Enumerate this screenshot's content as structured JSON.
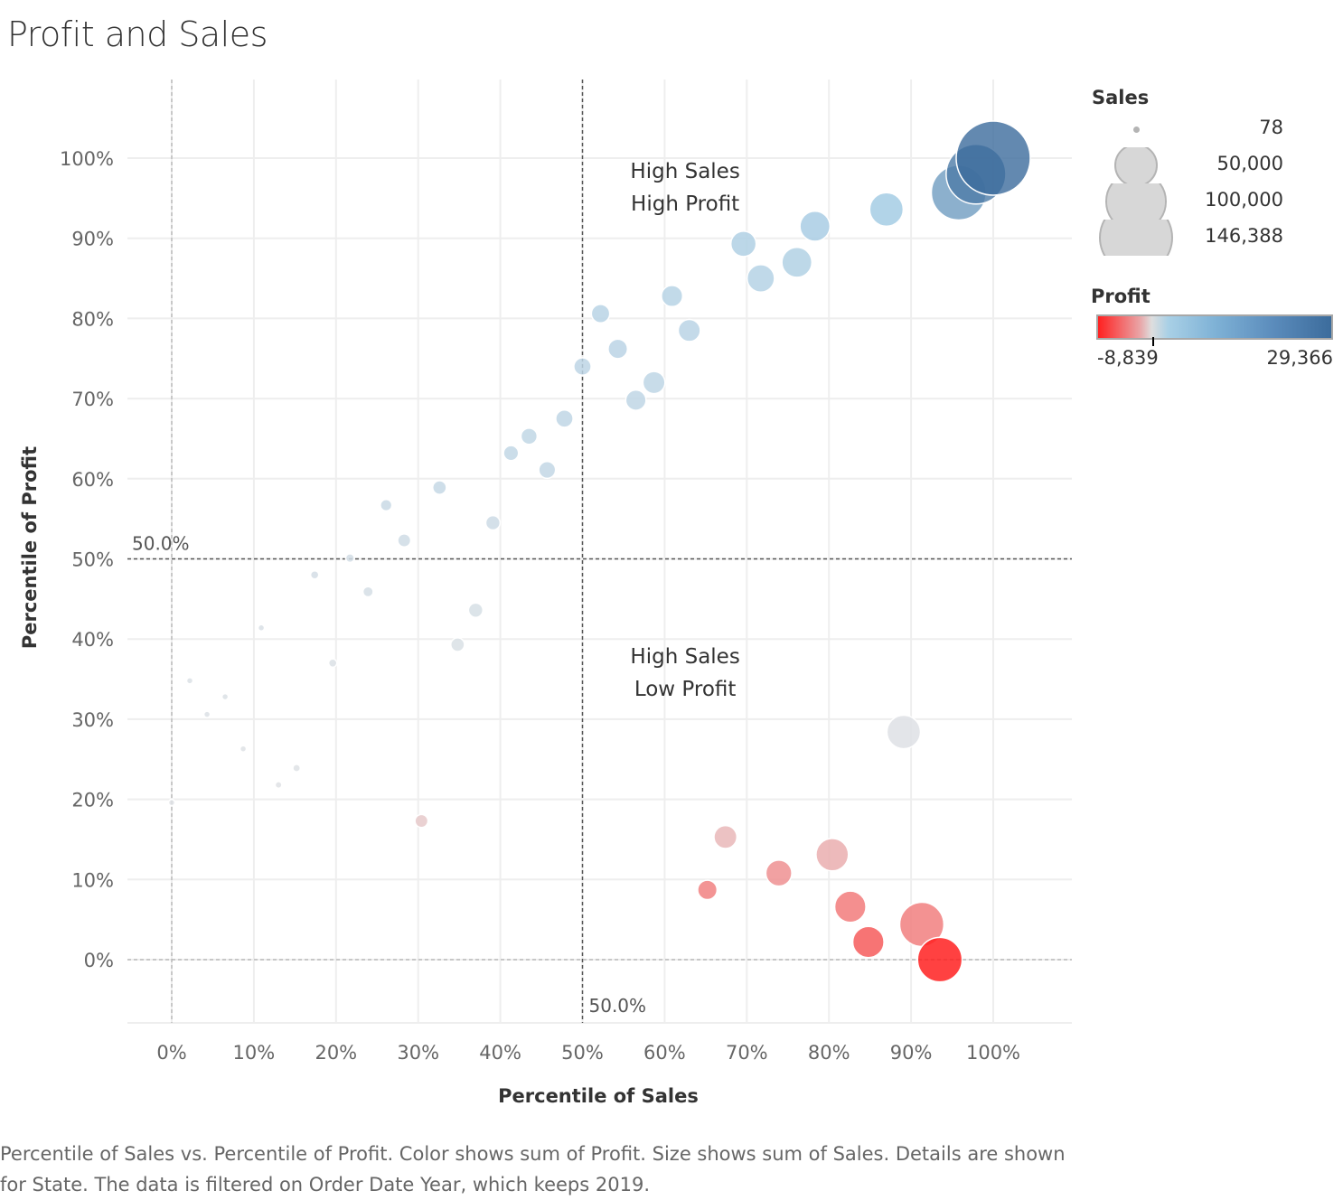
{
  "title": "Profit and Sales",
  "caption": "Percentile of Sales vs. Percentile of Profit.  Color shows sum of Profit.  Size shows sum of Sales.  Details are shown for State. The data is filtered on Order Date Year, which keeps 2019.",
  "legend": {
    "size_title": "Sales",
    "size_items": [
      {
        "label": "78",
        "value": 78
      },
      {
        "label": "50,000",
        "value": 50000
      },
      {
        "label": "100,000",
        "value": 100000
      },
      {
        "label": "146,388",
        "value": 146388
      }
    ],
    "color_title": "Profit",
    "color_min_label": "-8,839",
    "color_max_label": "29,366",
    "color_min": -8839,
    "color_max": 29366,
    "colors": {
      "negative": "#ff2020",
      "neutral": "#dedede",
      "light_blue": "#a9d0e6",
      "positive": "#3c6c9c"
    }
  },
  "chart_data": {
    "type": "scatter",
    "title": "Profit and Sales",
    "xlabel": "Percentile of Sales",
    "ylabel": "Percentile of Profit",
    "xlim": [
      -5,
      109
    ],
    "ylim": [
      -8,
      110
    ],
    "x_ticks": [
      "0%",
      "10%",
      "20%",
      "30%",
      "40%",
      "50%",
      "60%",
      "70%",
      "80%",
      "90%",
      "100%"
    ],
    "y_ticks": [
      "0%",
      "10%",
      "20%",
      "30%",
      "40%",
      "50%",
      "60%",
      "70%",
      "80%",
      "90%",
      "100%"
    ],
    "grid": true,
    "reference_lines": [
      {
        "axis": "y",
        "value": 50,
        "label": "50.0%"
      },
      {
        "axis": "x",
        "value": 50,
        "label": "50.0%"
      },
      {
        "axis": "x",
        "value": 0,
        "label": ""
      },
      {
        "axis": "y",
        "value": 0,
        "label": ""
      }
    ],
    "annotations": [
      {
        "lines": [
          "High Sales",
          "High Profit"
        ],
        "x": 62.5,
        "y": 97.5
      },
      {
        "lines": [
          "High Sales",
          "Low Profit"
        ],
        "x": 62.5,
        "y": 37
      }
    ],
    "points": [
      {
        "x": 100,
        "y": 100,
        "sales": 146388,
        "profit": 29366
      },
      {
        "x": 97.9,
        "y": 98,
        "sales": 95000,
        "profit": 26000
      },
      {
        "x": 95.8,
        "y": 95.7,
        "sales": 80000,
        "profit": 19000
      },
      {
        "x": 87,
        "y": 93.6,
        "sales": 30000,
        "profit": 8500
      },
      {
        "x": 78.3,
        "y": 91.5,
        "sales": 24000,
        "profit": 7500
      },
      {
        "x": 69.6,
        "y": 89.3,
        "sales": 17000,
        "profit": 6000
      },
      {
        "x": 76.1,
        "y": 87,
        "sales": 24000,
        "profit": 5500
      },
      {
        "x": 71.7,
        "y": 85,
        "sales": 20000,
        "profit": 5000
      },
      {
        "x": 60.9,
        "y": 82.8,
        "sales": 12000,
        "profit": 4500
      },
      {
        "x": 52.2,
        "y": 80.6,
        "sales": 9000,
        "profit": 4200
      },
      {
        "x": 63,
        "y": 78.5,
        "sales": 13000,
        "profit": 4000
      },
      {
        "x": 54.3,
        "y": 76.2,
        "sales": 10000,
        "profit": 3700
      },
      {
        "x": 50,
        "y": 74,
        "sales": 8000,
        "profit": 3400
      },
      {
        "x": 58.7,
        "y": 72,
        "sales": 13000,
        "profit": 3100
      },
      {
        "x": 56.5,
        "y": 69.8,
        "sales": 11000,
        "profit": 2900
      },
      {
        "x": 47.8,
        "y": 67.5,
        "sales": 8000,
        "profit": 2700
      },
      {
        "x": 43.5,
        "y": 65.3,
        "sales": 7000,
        "profit": 2500
      },
      {
        "x": 41.3,
        "y": 63.2,
        "sales": 6000,
        "profit": 2300
      },
      {
        "x": 45.7,
        "y": 61.1,
        "sales": 7500,
        "profit": 2100
      },
      {
        "x": 32.6,
        "y": 58.9,
        "sales": 5000,
        "profit": 1800
      },
      {
        "x": 26.1,
        "y": 56.7,
        "sales": 3500,
        "profit": 1500
      },
      {
        "x": 39.1,
        "y": 54.5,
        "sales": 5500,
        "profit": 1300
      },
      {
        "x": 28.3,
        "y": 52.3,
        "sales": 4500,
        "profit": 1100
      },
      {
        "x": 21.7,
        "y": 50.1,
        "sales": 2000,
        "profit": 900
      },
      {
        "x": 17.4,
        "y": 48,
        "sales": 1800,
        "profit": 800
      },
      {
        "x": 23.9,
        "y": 45.9,
        "sales": 2800,
        "profit": 700
      },
      {
        "x": 37,
        "y": 43.6,
        "sales": 5500,
        "profit": 600
      },
      {
        "x": 10.9,
        "y": 41.4,
        "sales": 1000,
        "profit": 500
      },
      {
        "x": 34.8,
        "y": 39.3,
        "sales": 5000,
        "profit": 400
      },
      {
        "x": 19.6,
        "y": 37,
        "sales": 1800,
        "profit": 350
      },
      {
        "x": 2.2,
        "y": 34.8,
        "sales": 800,
        "profit": 300
      },
      {
        "x": 6.5,
        "y": 32.8,
        "sales": 900,
        "profit": 250
      },
      {
        "x": 4.3,
        "y": 30.6,
        "sales": 700,
        "profit": 200
      },
      {
        "x": 89.1,
        "y": 28.4,
        "sales": 30000,
        "profit": 100
      },
      {
        "x": 8.7,
        "y": 26.3,
        "sales": 900,
        "profit": 80
      },
      {
        "x": 15.2,
        "y": 23.9,
        "sales": 1500,
        "profit": 50
      },
      {
        "x": 13,
        "y": 21.8,
        "sales": 1200,
        "profit": 20
      },
      {
        "x": 0,
        "y": 19.6,
        "sales": 78,
        "profit": 10
      },
      {
        "x": 30.4,
        "y": 17.3,
        "sales": 4500,
        "profit": -200
      },
      {
        "x": 67.4,
        "y": 15.3,
        "sales": 14000,
        "profit": -700
      },
      {
        "x": 80.4,
        "y": 13.1,
        "sales": 28000,
        "profit": -1000
      },
      {
        "x": 73.9,
        "y": 10.8,
        "sales": 18000,
        "profit": -2200
      },
      {
        "x": 65.2,
        "y": 8.7,
        "sales": 10000,
        "profit": -3000
      },
      {
        "x": 82.6,
        "y": 6.6,
        "sales": 26000,
        "profit": -3300
      },
      {
        "x": 91.3,
        "y": 4.4,
        "sales": 52000,
        "profit": -3100
      },
      {
        "x": 84.8,
        "y": 2.2,
        "sales": 26000,
        "profit": -5000
      },
      {
        "x": 93.5,
        "y": 0,
        "sales": 53000,
        "profit": -8839
      }
    ]
  }
}
